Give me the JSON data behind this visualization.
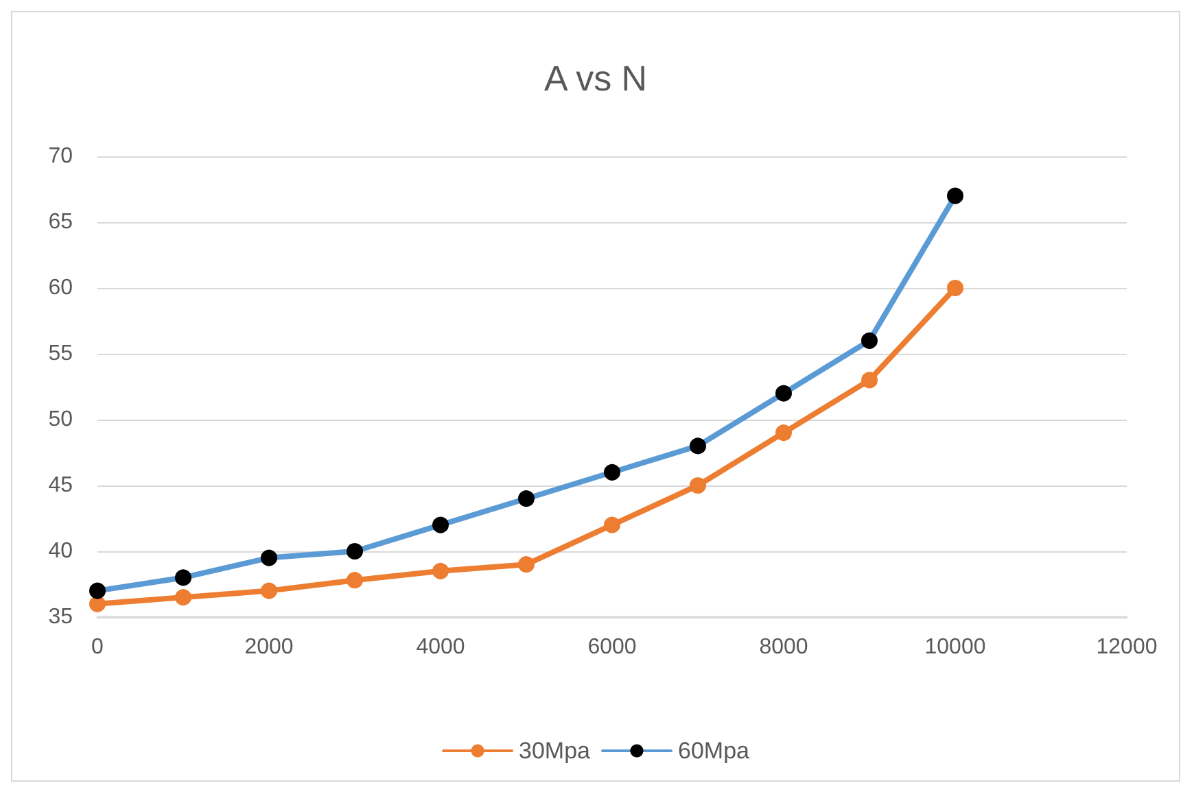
{
  "chart_data": {
    "type": "line",
    "title": "A vs N",
    "x": [
      0,
      1000,
      2000,
      3000,
      4000,
      5000,
      6000,
      7000,
      8000,
      9000,
      10000
    ],
    "series": [
      {
        "name": "30Mpa",
        "color": "#ed7d31",
        "values": [
          36,
          36.5,
          37,
          37.8,
          38.5,
          39,
          42,
          45,
          49,
          53,
          60
        ]
      },
      {
        "name": "60Mpa",
        "color": "#5b9bd5",
        "values": [
          37,
          38,
          39.5,
          40,
          42,
          44,
          46,
          48,
          52,
          56,
          67
        ]
      }
    ],
    "xlim": [
      0,
      12000
    ],
    "xticks": [
      0,
      2000,
      4000,
      6000,
      8000,
      10000,
      12000
    ],
    "ylim": [
      35,
      70
    ],
    "yticks": [
      35,
      40,
      45,
      50,
      55,
      60,
      65,
      70
    ],
    "grid": "y",
    "legend": "bottom",
    "marker": "circle",
    "line_style": "solid"
  }
}
